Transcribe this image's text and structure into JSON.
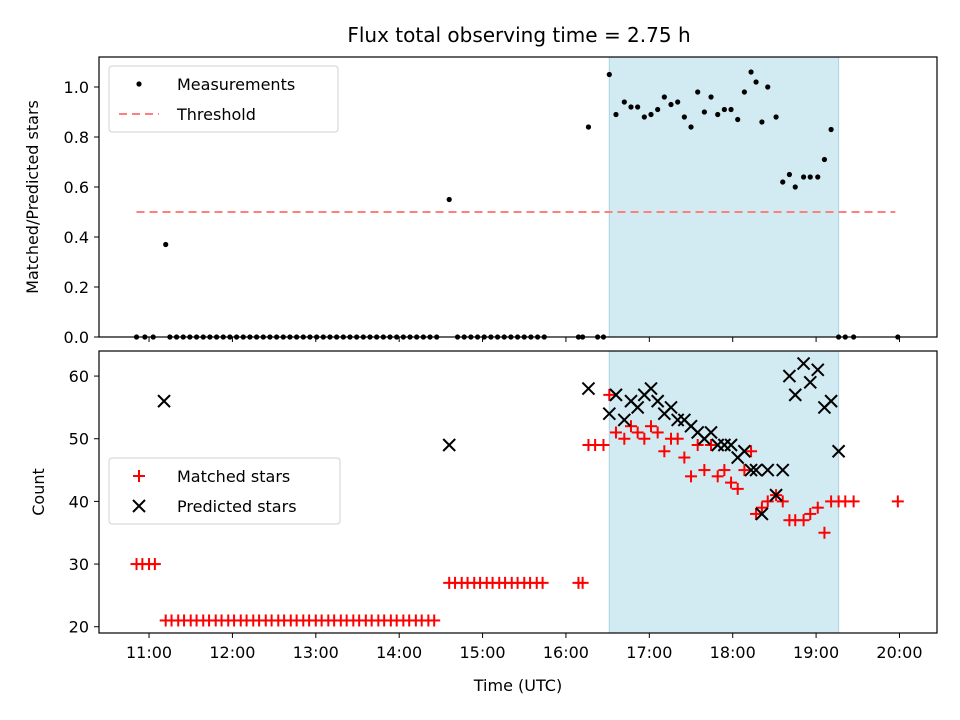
{
  "chart_data": [
    {
      "type": "scatter",
      "title": "Flux total observing time = 2.75 h",
      "xlabel": "",
      "ylabel": "Matched/Predicted stars",
      "xlim": [
        10.4,
        20.45
      ],
      "ylim": [
        0,
        1.12
      ],
      "yticks": [
        0.0,
        0.2,
        0.4,
        0.6,
        0.8,
        1.0
      ],
      "ytick_labels": [
        "0.0",
        "0.2",
        "0.4",
        "0.6",
        "0.8",
        "1.0"
      ],
      "shaded_region": {
        "x0": 16.52,
        "x1": 19.27,
        "color": "#d2eaf1"
      },
      "legend": {
        "placement": "upper-left",
        "entries": [
          "Measurements",
          "Threshold"
        ]
      },
      "threshold": {
        "name": "Threshold",
        "y": 0.5,
        "x0": 10.85,
        "x1": 19.95,
        "color": "#ff7f7f"
      },
      "series": [
        {
          "name": "Measurements",
          "color": "#000000",
          "x": [
            10.85,
            10.95,
            11.05,
            11.2,
            11.25,
            11.33,
            11.41,
            11.49,
            11.57,
            11.65,
            11.73,
            11.81,
            11.89,
            11.97,
            12.05,
            12.13,
            12.21,
            12.29,
            12.37,
            12.45,
            12.53,
            12.61,
            12.69,
            12.77,
            12.85,
            12.93,
            13.01,
            13.09,
            13.17,
            13.25,
            13.33,
            13.41,
            13.49,
            13.57,
            13.65,
            13.73,
            13.81,
            13.89,
            13.97,
            14.05,
            14.13,
            14.21,
            14.29,
            14.37,
            14.45,
            14.6,
            14.7,
            14.78,
            14.86,
            14.94,
            15.02,
            15.1,
            15.18,
            15.26,
            15.34,
            15.42,
            15.5,
            15.58,
            15.66,
            15.74,
            16.15,
            16.2,
            16.27,
            16.38,
            16.45,
            16.52,
            16.6,
            16.7,
            16.78,
            16.86,
            16.94,
            17.02,
            17.1,
            17.18,
            17.26,
            17.34,
            17.42,
            17.5,
            17.58,
            17.66,
            17.74,
            17.82,
            17.9,
            17.98,
            18.06,
            18.14,
            18.22,
            18.28,
            18.35,
            18.42,
            18.52,
            18.6,
            18.68,
            18.75,
            18.85,
            18.93,
            19.02,
            19.1,
            19.18,
            19.27,
            19.35,
            19.45,
            19.98
          ],
          "y": [
            0.0,
            0.0,
            0.0,
            0.37,
            0.0,
            0.0,
            0.0,
            0.0,
            0.0,
            0.0,
            0.0,
            0.0,
            0.0,
            0.0,
            0.0,
            0.0,
            0.0,
            0.0,
            0.0,
            0.0,
            0.0,
            0.0,
            0.0,
            0.0,
            0.0,
            0.0,
            0.0,
            0.0,
            0.0,
            0.0,
            0.0,
            0.0,
            0.0,
            0.0,
            0.0,
            0.0,
            0.0,
            0.0,
            0.0,
            0.0,
            0.0,
            0.0,
            0.0,
            0.0,
            0.0,
            0.55,
            0.0,
            0.0,
            0.0,
            0.0,
            0.0,
            0.0,
            0.0,
            0.0,
            0.0,
            0.0,
            0.0,
            0.0,
            0.0,
            0.0,
            0.0,
            0.0,
            0.84,
            0.0,
            0.0,
            1.05,
            0.89,
            0.94,
            0.92,
            0.92,
            0.88,
            0.89,
            0.91,
            0.96,
            0.93,
            0.94,
            0.88,
            0.84,
            0.98,
            0.9,
            0.96,
            0.89,
            0.91,
            0.91,
            0.87,
            0.98,
            1.06,
            1.02,
            0.86,
            1.0,
            0.88,
            0.62,
            0.65,
            0.6,
            0.64,
            0.64,
            0.64,
            0.71,
            0.83,
            0.0,
            0.0,
            0.0,
            0.0
          ]
        }
      ]
    },
    {
      "type": "scatter",
      "title": "",
      "xlabel": "Time (UTC)",
      "ylabel": "Count",
      "xlim": [
        10.4,
        20.45
      ],
      "ylim": [
        19,
        64
      ],
      "xticks": [
        11,
        12,
        13,
        14,
        15,
        16,
        17,
        18,
        19,
        20
      ],
      "xtick_labels": [
        "11:00",
        "12:00",
        "13:00",
        "14:00",
        "15:00",
        "16:00",
        "17:00",
        "18:00",
        "19:00",
        "20:00"
      ],
      "yticks": [
        20,
        30,
        40,
        50,
        60
      ],
      "ytick_labels": [
        "20",
        "30",
        "40",
        "50",
        "60"
      ],
      "shaded_region": {
        "x0": 16.52,
        "x1": 19.27,
        "color": "#d2eaf1"
      },
      "legend": {
        "placement": "center-left",
        "entries": [
          "Matched stars",
          "Predicted stars"
        ]
      },
      "series": [
        {
          "name": "Matched stars",
          "color": "#ff0000",
          "marker": "+",
          "x": [
            10.85,
            10.92,
            11.0,
            11.07,
            11.2,
            11.27,
            11.35,
            11.42,
            11.5,
            11.57,
            11.65,
            11.72,
            11.8,
            11.87,
            11.95,
            12.02,
            12.1,
            12.17,
            12.25,
            12.32,
            12.4,
            12.47,
            12.55,
            12.62,
            12.7,
            12.77,
            12.85,
            12.92,
            13.0,
            13.07,
            13.15,
            13.22,
            13.3,
            13.37,
            13.45,
            13.52,
            13.6,
            13.67,
            13.75,
            13.82,
            13.9,
            13.97,
            14.05,
            14.12,
            14.2,
            14.27,
            14.35,
            14.42,
            14.6,
            14.67,
            14.75,
            14.82,
            14.9,
            14.97,
            15.05,
            15.12,
            15.2,
            15.27,
            15.35,
            15.42,
            15.5,
            15.57,
            15.65,
            15.72,
            16.15,
            16.2,
            16.27,
            16.35,
            16.45,
            16.52,
            16.6,
            16.7,
            16.78,
            16.86,
            16.94,
            17.02,
            17.1,
            17.18,
            17.26,
            17.34,
            17.42,
            17.5,
            17.58,
            17.66,
            17.74,
            17.82,
            17.9,
            17.98,
            18.06,
            18.14,
            18.22,
            18.28,
            18.35,
            18.42,
            18.52,
            18.6,
            18.68,
            18.75,
            18.85,
            18.93,
            19.02,
            19.1,
            19.18,
            19.27,
            19.35,
            19.45,
            19.98
          ],
          "y": [
            30,
            30,
            30,
            30,
            21,
            21,
            21,
            21,
            21,
            21,
            21,
            21,
            21,
            21,
            21,
            21,
            21,
            21,
            21,
            21,
            21,
            21,
            21,
            21,
            21,
            21,
            21,
            21,
            21,
            21,
            21,
            21,
            21,
            21,
            21,
            21,
            21,
            21,
            21,
            21,
            21,
            21,
            21,
            21,
            21,
            21,
            21,
            21,
            27,
            27,
            27,
            27,
            27,
            27,
            27,
            27,
            27,
            27,
            27,
            27,
            27,
            27,
            27,
            27,
            27,
            27,
            49,
            49,
            49,
            57,
            51,
            50,
            52,
            51,
            50,
            52,
            51,
            48,
            50,
            50,
            47,
            44,
            49,
            45,
            49,
            44,
            45,
            43,
            42,
            45,
            48,
            38,
            39,
            40,
            41,
            40,
            37,
            37,
            37,
            38,
            39,
            35,
            40,
            40,
            40,
            40,
            40
          ]
        },
        {
          "name": "Predicted stars",
          "color": "#000000",
          "marker": "x",
          "x": [
            11.18,
            14.6,
            16.27,
            16.52,
            16.6,
            16.7,
            16.78,
            16.86,
            16.94,
            17.02,
            17.1,
            17.18,
            17.26,
            17.34,
            17.42,
            17.5,
            17.58,
            17.66,
            17.74,
            17.82,
            17.9,
            17.98,
            18.06,
            18.14,
            18.22,
            18.28,
            18.35,
            18.42,
            18.52,
            18.6,
            18.68,
            18.75,
            18.85,
            18.93,
            19.02,
            19.1,
            19.18,
            19.27
          ],
          "y": [
            56,
            49,
            58,
            54,
            57,
            53,
            56,
            55,
            57,
            58,
            56,
            54,
            55,
            53,
            53,
            52,
            51,
            50,
            51,
            49,
            49,
            49,
            47,
            48,
            45,
            45,
            38,
            45,
            41,
            45,
            60,
            57,
            62,
            59,
            61,
            55,
            56,
            48
          ]
        }
      ]
    }
  ]
}
